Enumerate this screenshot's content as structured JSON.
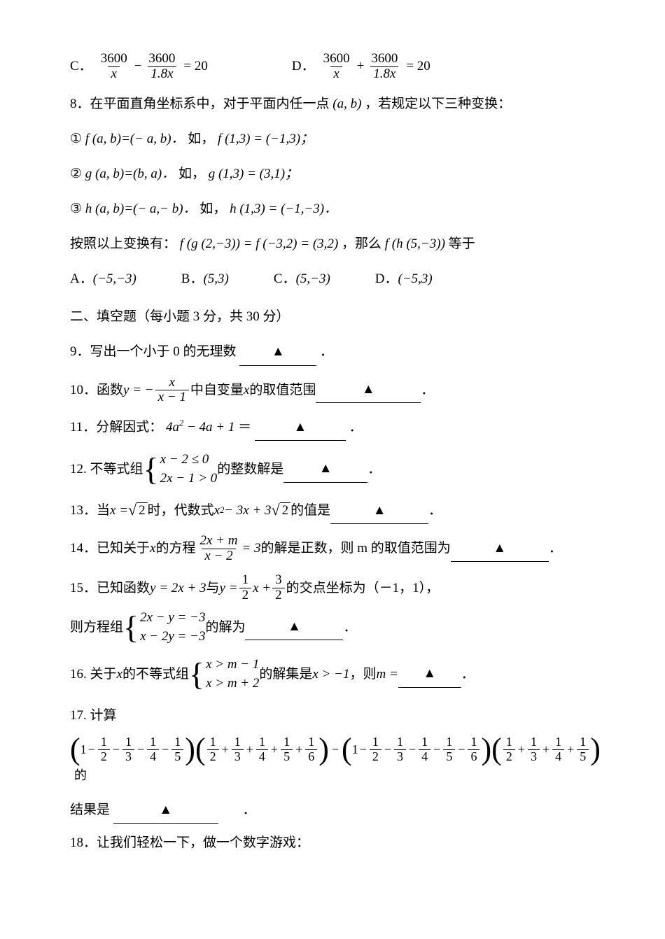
{
  "q7": {
    "optC_label": "C．",
    "optD_label": "D．",
    "eqC": {
      "lhs1_num": "3600",
      "lhs1_den": "x",
      "op": "−",
      "lhs2_num": "3600",
      "lhs2_den": "1.8x",
      "eq": "= 20"
    },
    "eqD": {
      "lhs1_num": "3600",
      "lhs1_den": "x",
      "op": "+",
      "lhs2_num": "3600",
      "lhs2_den": "1.8x",
      "eq": "= 20"
    }
  },
  "q8": {
    "stem": "8．在平面直角坐标系中，对于平面内任一点",
    "point": "(a,  b)",
    "tail": "，若规定以下三种变换：",
    "line1a": "①",
    "f1": "f (a,  b)=(− a,  b)．",
    "eg1_pre": "如，",
    "eg1": "f (1,3) = (−1,3)；",
    "line2a": "②",
    "g1": "g (a,  b)=(b,  a)．",
    "eg2_pre": "如，",
    "eg2": "g (1,3) = (3,1)；",
    "line3a": "③",
    "h1": "h (a,  b)=(− a,− b)．",
    "eg3_pre": "如，",
    "eg3": "h (1,3) = (−1,−3)．",
    "line4_pre": "按照以上变换有：",
    "line4_mid": "f (g (2,−3)) = f (−3,2) = (3,2)",
    "line4_tail": "，那么 ",
    "line4_q": "f (h (5,−3))",
    "line4_end": "等于",
    "opts": {
      "A": "A．",
      "Av": "(−5,−3)",
      "B": "B．",
      "Bv": "(5,3)",
      "C": "C．",
      "Cv": "(5,−3)",
      "D": "D．",
      "Dv": "(−5,3)"
    }
  },
  "sec2": "二、填空题（每小题 3 分，共 30 分）",
  "q9": {
    "t": "9．写出一个小于 0 的无理数",
    "tail": "．"
  },
  "q10": {
    "t": "10．函数 ",
    "y": "y = −",
    "num": "x",
    "den": "x − 1",
    "mid": " 中自变量 ",
    "xv": "x",
    "tail": " 的取值范围",
    "end": "．"
  },
  "q11": {
    "t": "11．分解因式：",
    "expr": "4a",
    "sq": "2",
    "rest": " − 4a + 1",
    "eq": "＝",
    "end": "．"
  },
  "q12": {
    "t": "12. 不等式组 ",
    "c1": "x − 2 ≤ 0",
    "c2": "2x − 1 > 0",
    "mid": " 的整数解是",
    "end": "．"
  },
  "q13": {
    "t": "13．当 ",
    "xv": "x = ",
    "sq": "2",
    "mid": " 时，代数式 ",
    "ex": "x",
    "p2": "2",
    "rest": " − 3x + 3",
    "sq2": "2",
    "tail": " 的值是",
    "end": "．"
  },
  "q14": {
    "t": "14．已知关于 ",
    "xv": "x",
    "mid": " 的方程 ",
    "num": "2x + m",
    "den": "x − 2",
    "eq": " = 3",
    "t2": " 的解是正数，则 m 的取值范围为",
    "end": "．"
  },
  "q15": {
    "t": "15．已知函数 ",
    "f1": "y = 2x + 3",
    "and": " 与 ",
    "f2a": "y = ",
    "n1": "1",
    "d1": "2",
    "xv": "x + ",
    "n2": "3",
    "d2": "2",
    "tail": " 的交点坐标为（－1，1），",
    "l2_pre": "则方程组 ",
    "c1": "2x − y = −3",
    "c2": "x − 2y = −3",
    "l2_mid": " 的解为",
    "end": "．"
  },
  "q16": {
    "t": "16. 关于 ",
    "xv": "x",
    "mid": " 的不等式组 ",
    "c1": "x > m − 1",
    "c2": "x > m + 2",
    "t2": " 的解集是 ",
    "sol": "x > −1",
    "t3": "，则 ",
    "mv": "m = ",
    "end": "．"
  },
  "q17": {
    "t": "17. 计算",
    "g1": [
      "1",
      "−",
      "1",
      "2",
      "−",
      "1",
      "3",
      "−",
      "1",
      "4",
      "−",
      "1",
      "5"
    ],
    "g2": [
      "1",
      "2",
      "+",
      "1",
      "3",
      "+",
      "1",
      "4",
      "+",
      "1",
      "5",
      "+",
      "1",
      "6"
    ],
    "g3": [
      "1",
      "−",
      "1",
      "2",
      "−",
      "1",
      "3",
      "−",
      "1",
      "4",
      "−",
      "1",
      "5",
      "−",
      "1",
      "6"
    ],
    "g4": [
      "1",
      "2",
      "+",
      "1",
      "3",
      "+",
      "1",
      "4",
      "+",
      "1",
      "5"
    ],
    "tail": "的",
    "res_pre": "结果是",
    "end": "．"
  },
  "q18": {
    "t": "18．让我们轻松一下，做一个数字游戏："
  },
  "triangle": "▲"
}
